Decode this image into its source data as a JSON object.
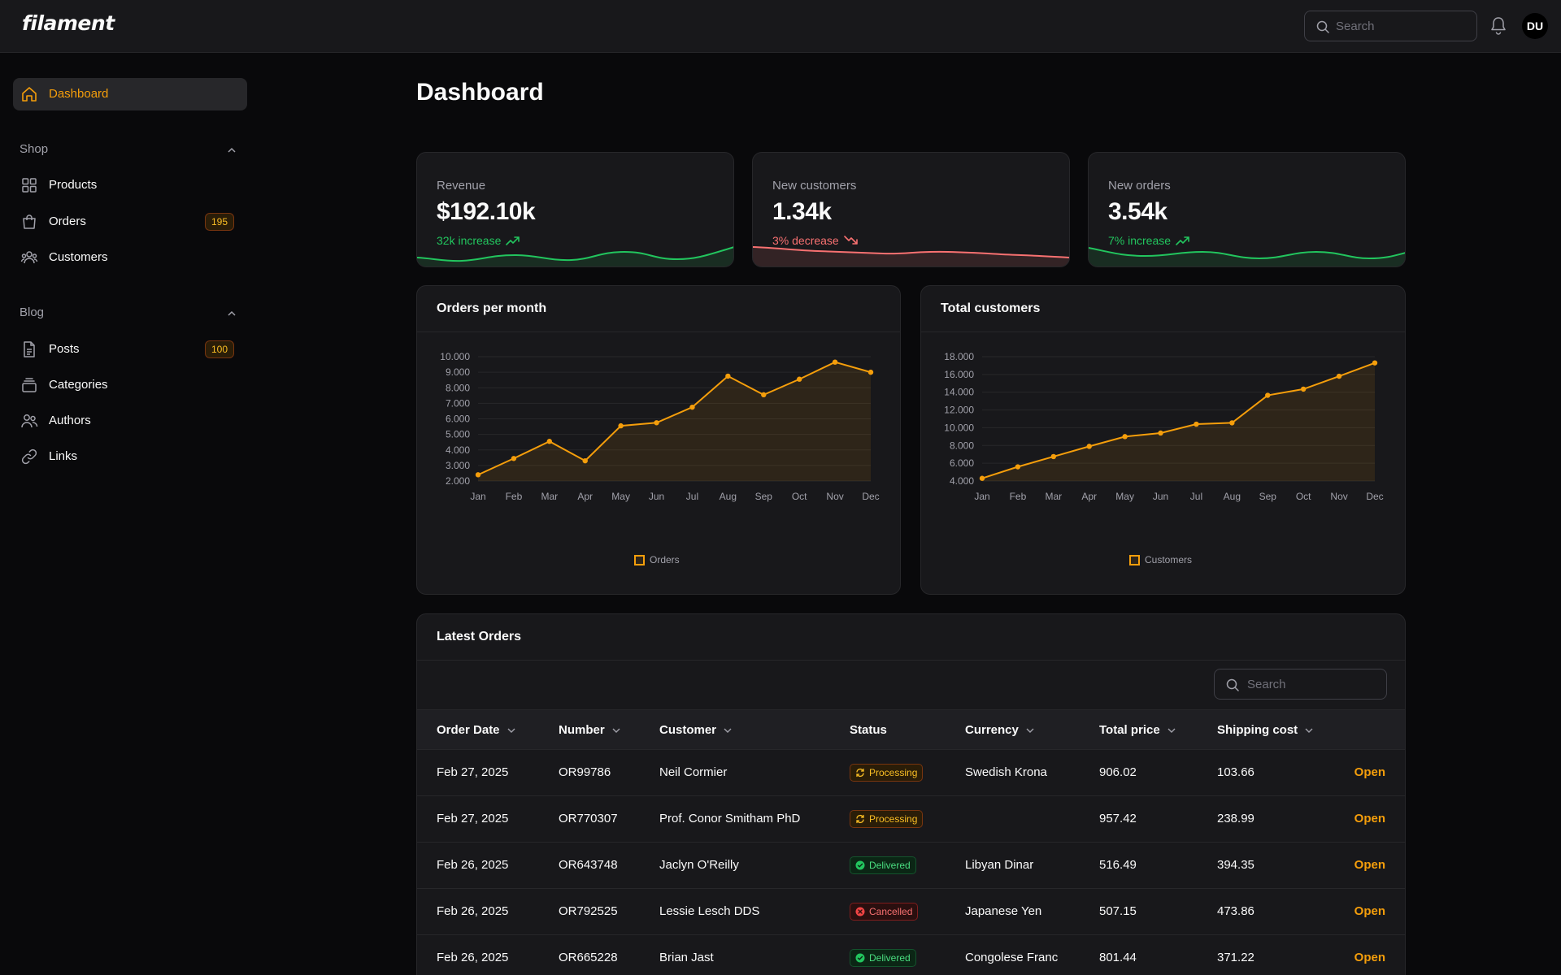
{
  "app": {
    "logo": "filament"
  },
  "topbar": {
    "search_placeholder": "Search",
    "avatar_initials": "DU"
  },
  "sidebar": {
    "dashboard": {
      "label": "Dashboard"
    },
    "shop": {
      "label": "Shop",
      "items": [
        {
          "label": "Products",
          "icon": "squares-icon"
        },
        {
          "label": "Orders",
          "icon": "shopping-bag-icon",
          "badge": "195"
        },
        {
          "label": "Customers",
          "icon": "users-icon"
        }
      ]
    },
    "blog": {
      "label": "Blog",
      "items": [
        {
          "label": "Posts",
          "icon": "document-icon",
          "badge": "100"
        },
        {
          "label": "Categories",
          "icon": "rectangle-stack-icon"
        },
        {
          "label": "Authors",
          "icon": "user-group-icon"
        },
        {
          "label": "Links",
          "icon": "link-icon"
        }
      ]
    }
  },
  "page": {
    "title": "Dashboard"
  },
  "stats": [
    {
      "label": "Revenue",
      "value": "$192.10k",
      "description": "32k increase",
      "trend": "up",
      "color": "#22c55e"
    },
    {
      "label": "New customers",
      "value": "1.34k",
      "description": "3% decrease",
      "trend": "down",
      "color": "#f87171"
    },
    {
      "label": "New orders",
      "value": "3.54k",
      "description": "7% increase",
      "trend": "up",
      "color": "#22c55e"
    }
  ],
  "chart_data": [
    {
      "type": "line",
      "title": "Orders per month",
      "categories": [
        "Jan",
        "Feb",
        "Mar",
        "Apr",
        "May",
        "Jun",
        "Jul",
        "Aug",
        "Sep",
        "Oct",
        "Nov",
        "Dec"
      ],
      "series": [
        {
          "name": "Orders",
          "values": [
            2400,
            3450,
            4550,
            3300,
            5550,
            5750,
            6750,
            8750,
            7550,
            8550,
            9650,
            9000
          ]
        }
      ],
      "ylim": [
        2000,
        10000
      ],
      "yticks": [
        "2.000",
        "3.000",
        "4.000",
        "5.000",
        "6.000",
        "7.000",
        "8.000",
        "9.000",
        "10.000"
      ],
      "color": "#f59e0b"
    },
    {
      "type": "line",
      "title": "Total customers",
      "categories": [
        "Jan",
        "Feb",
        "Mar",
        "Apr",
        "May",
        "Jun",
        "Jul",
        "Aug",
        "Sep",
        "Oct",
        "Nov",
        "Dec"
      ],
      "series": [
        {
          "name": "Customers",
          "values": [
            4300,
            5600,
            6750,
            7900,
            9000,
            9400,
            10400,
            10550,
            13650,
            14350,
            15800,
            17300
          ]
        }
      ],
      "ylim": [
        4000,
        18000
      ],
      "yticks": [
        "4.000",
        "6.000",
        "8.000",
        "10.000",
        "12.000",
        "14.000",
        "16.000",
        "18.000"
      ],
      "color": "#f59e0b"
    }
  ],
  "orders": {
    "title": "Latest Orders",
    "search_placeholder": "Search",
    "open_label": "Open",
    "columns": [
      "Order Date",
      "Number",
      "Customer",
      "Status",
      "Currency",
      "Total price",
      "Shipping cost"
    ],
    "rows": [
      {
        "date": "Feb 27, 2025",
        "number": "OR99786",
        "customer": "Neil Cormier",
        "status": "Processing",
        "currency": "Swedish Krona",
        "total": "906.02",
        "shipping": "103.66"
      },
      {
        "date": "Feb 27, 2025",
        "number": "OR770307",
        "customer": "Prof. Conor Smitham PhD",
        "status": "Processing",
        "currency": "",
        "total": "957.42",
        "shipping": "238.99"
      },
      {
        "date": "Feb 26, 2025",
        "number": "OR643748",
        "customer": "Jaclyn O'Reilly",
        "status": "Delivered",
        "currency": "Libyan Dinar",
        "total": "516.49",
        "shipping": "394.35"
      },
      {
        "date": "Feb 26, 2025",
        "number": "OR792525",
        "customer": "Lessie Lesch DDS",
        "status": "Cancelled",
        "currency": "Japanese Yen",
        "total": "507.15",
        "shipping": "473.86"
      },
      {
        "date": "Feb 26, 2025",
        "number": "OR665228",
        "customer": "Brian Jast",
        "status": "Delivered",
        "currency": "Congolese Franc",
        "total": "801.44",
        "shipping": "371.22"
      }
    ]
  }
}
